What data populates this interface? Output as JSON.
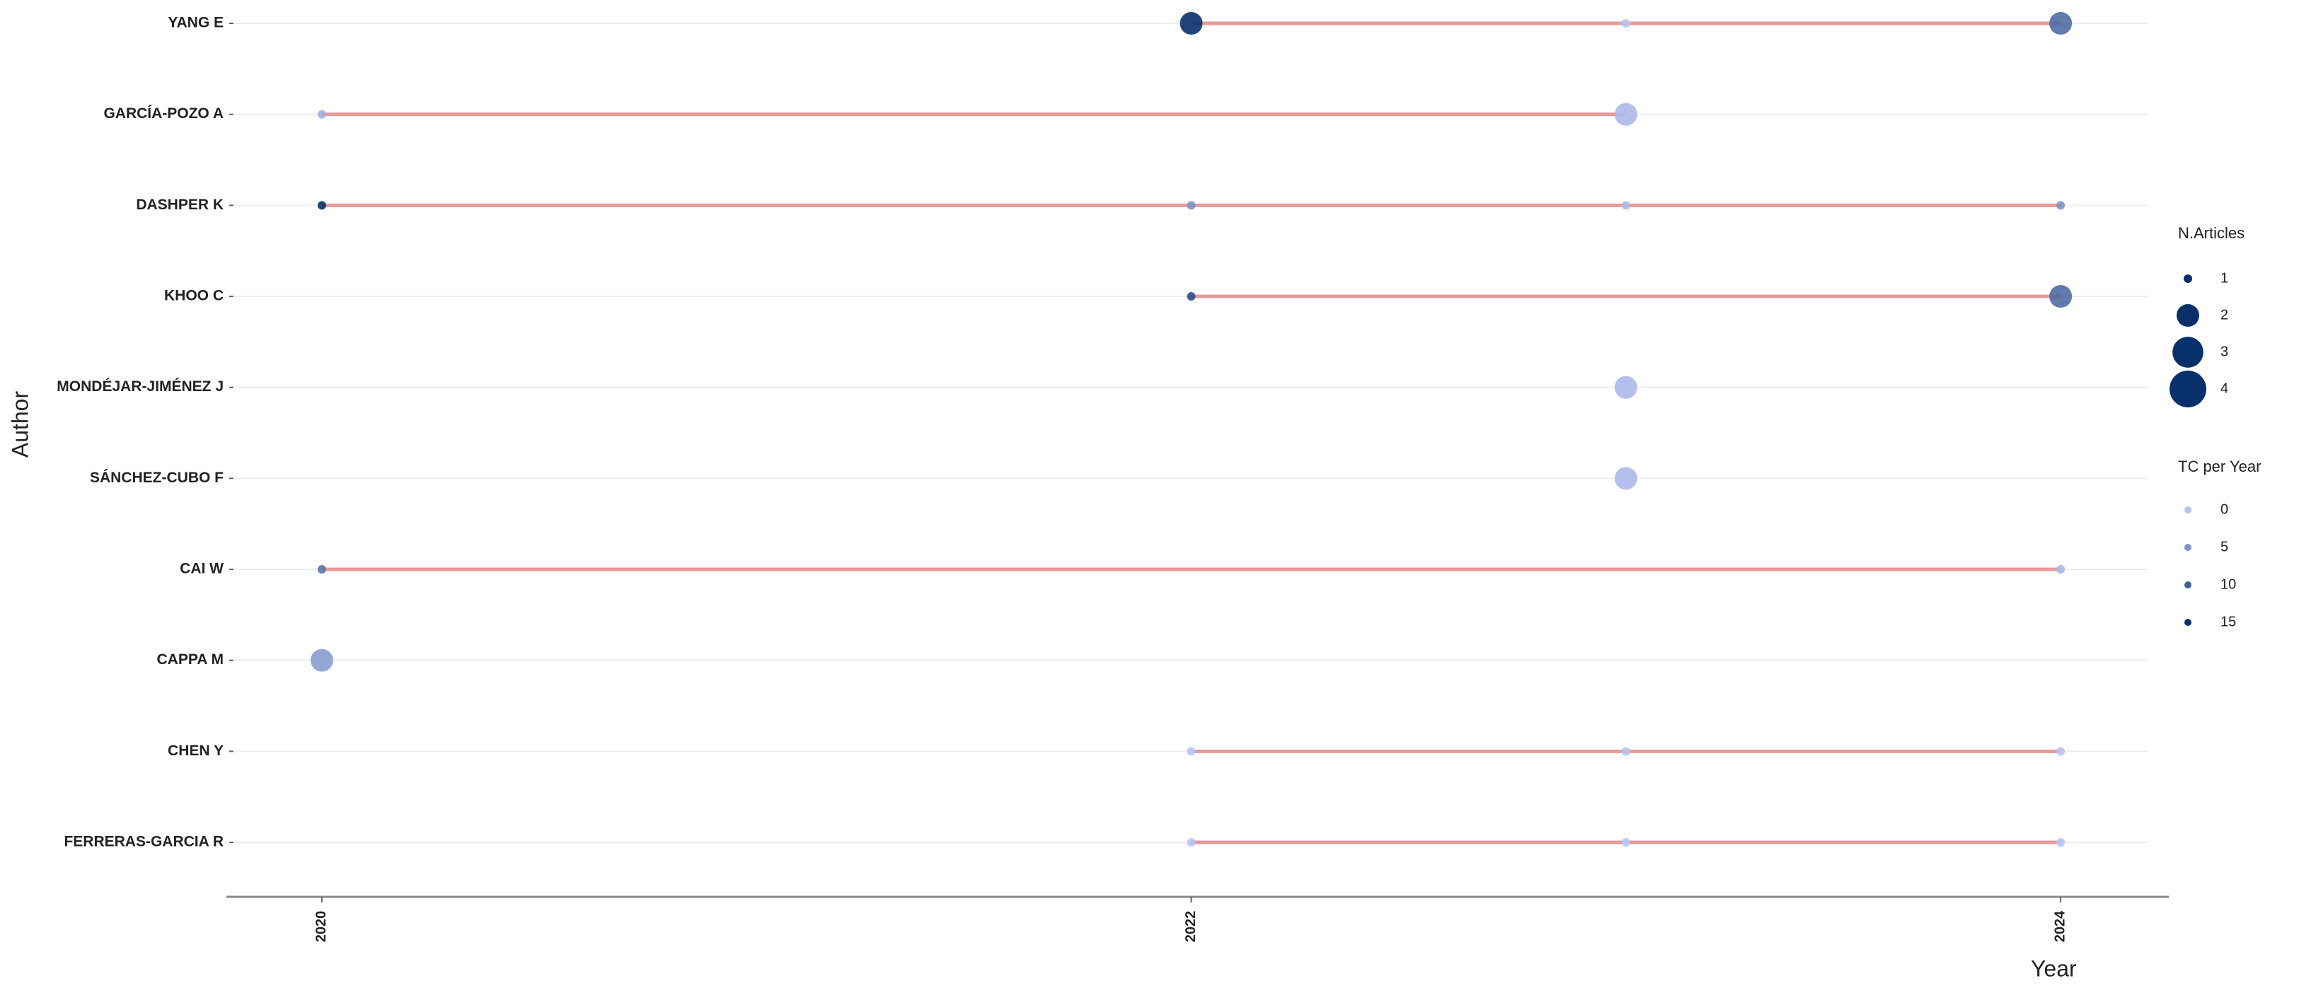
{
  "chart_data": {
    "type": "timeline",
    "x_label": "Year",
    "y_label": "Author",
    "xlim": [
      2019.8,
      2024.2
    ],
    "xticks": [
      2020,
      2022,
      2024
    ],
    "grid": true,
    "line_color": "#e79a9a",
    "color_low": "#b7c3f4",
    "color_high": "#08306b",
    "authors": [
      {
        "name": "YANG E",
        "year": [
          2022,
          2023,
          2024
        ],
        "articles": [
          2,
          1,
          2
        ],
        "tc_per_year": [
          15,
          0,
          9
        ]
      },
      {
        "name": "GARCÍA-POZO A",
        "year": [
          2020,
          2023
        ],
        "articles": [
          1,
          2
        ],
        "tc_per_year": [
          2,
          1
        ]
      },
      {
        "name": "DASHPER K",
        "year": [
          2020,
          2022,
          2023,
          2024
        ],
        "articles": [
          1,
          1,
          1,
          1
        ],
        "tc_per_year": [
          15,
          5,
          1,
          5
        ]
      },
      {
        "name": "KHOO C",
        "year": [
          2022,
          2024
        ],
        "articles": [
          1,
          2
        ],
        "tc_per_year": [
          12,
          9
        ]
      },
      {
        "name": "MONDÉJAR-JIMÉNEZ J",
        "year": [
          2023
        ],
        "articles": [
          2
        ],
        "tc_per_year": [
          1
        ]
      },
      {
        "name": "SÁNCHEZ-CUBO F",
        "year": [
          2023
        ],
        "articles": [
          2
        ],
        "tc_per_year": [
          1
        ]
      },
      {
        "name": "CAI W",
        "year": [
          2020,
          2024
        ],
        "articles": [
          1,
          1
        ],
        "tc_per_year": [
          8,
          1
        ]
      },
      {
        "name": "CAPPA M",
        "year": [
          2020
        ],
        "articles": [
          2
        ],
        "tc_per_year": [
          4
        ]
      },
      {
        "name": "CHEN Y",
        "year": [
          2022,
          2023,
          2024
        ],
        "articles": [
          1,
          1,
          1
        ],
        "tc_per_year": [
          0,
          0,
          0
        ]
      },
      {
        "name": "FERRERAS-GARCIA R",
        "year": [
          2022,
          2023,
          2024
        ],
        "articles": [
          1,
          1,
          1
        ],
        "tc_per_year": [
          0,
          0,
          0
        ]
      }
    ],
    "size_legend": {
      "title": "N.Articles",
      "values": [
        1,
        2,
        3,
        4
      ]
    },
    "color_legend": {
      "title": "TC per Year",
      "values": [
        0,
        5,
        10,
        15
      ]
    },
    "color_max": 15
  }
}
